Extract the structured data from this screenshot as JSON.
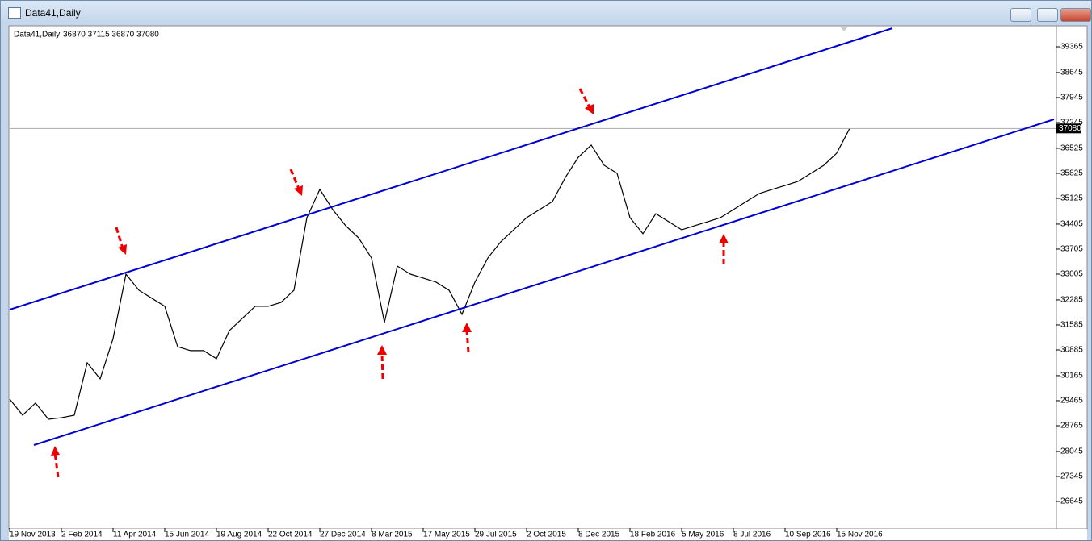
{
  "window": {
    "title": "Data41,Daily"
  },
  "chart_data": {
    "type": "line",
    "title": "Data41,Daily",
    "subtitle": "36870 37115 36870 37080",
    "categories": [
      "19 Nov 2013",
      null,
      null,
      null,
      "2 Feb 2014",
      null,
      null,
      null,
      "11 Apr 2014",
      null,
      null,
      null,
      "15 Jun 2014",
      null,
      null,
      null,
      "19 Aug 2014",
      null,
      null,
      null,
      "22 Oct 2014",
      null,
      null,
      null,
      "27 Dec 2014",
      null,
      null,
      null,
      "8 Mar 2015",
      null,
      null,
      null,
      "17 May 2015",
      null,
      null,
      null,
      "29 Jul 2015",
      null,
      null,
      null,
      "2 Oct 2015",
      null,
      null,
      null,
      "8 Dec 2015",
      null,
      null,
      null,
      "18 Feb 2016",
      null,
      null,
      null,
      "5 May 2016",
      null,
      null,
      null,
      "8 Jul 2016",
      null,
      null,
      null,
      "10 Sep 2016",
      null,
      null,
      null,
      "15 Nov 2016",
      null
    ],
    "values": [
      29510,
      29060,
      29400,
      28945,
      28990,
      29060,
      30525,
      30075,
      31200,
      33005,
      32555,
      32330,
      32105,
      30975,
      30865,
      30865,
      30640,
      31425,
      31765,
      32105,
      32105,
      32215,
      32555,
      34585,
      35375,
      34810,
      34360,
      34020,
      33455,
      31655,
      33230,
      33005,
      32895,
      32780,
      32555,
      31880,
      32780,
      33455,
      33910,
      34245,
      34585,
      34810,
      35035,
      35710,
      36275,
      36615,
      36050,
      35825,
      34585,
      34135,
      34695,
      34470,
      34245,
      34360,
      34470,
      34585,
      34810,
      35035,
      35260,
      35375,
      35485,
      35600,
      35825,
      36050,
      36390,
      37080
    ],
    "color": "#000000",
    "ylim": [
      25901,
      39929
    ],
    "yticks": [
      39365,
      38645,
      37945,
      37245,
      36525,
      35825,
      35125,
      34405,
      33705,
      33005,
      32285,
      31585,
      30885,
      30165,
      29465,
      28765,
      28045,
      27345,
      26645
    ],
    "last_price": 37080
  }
}
